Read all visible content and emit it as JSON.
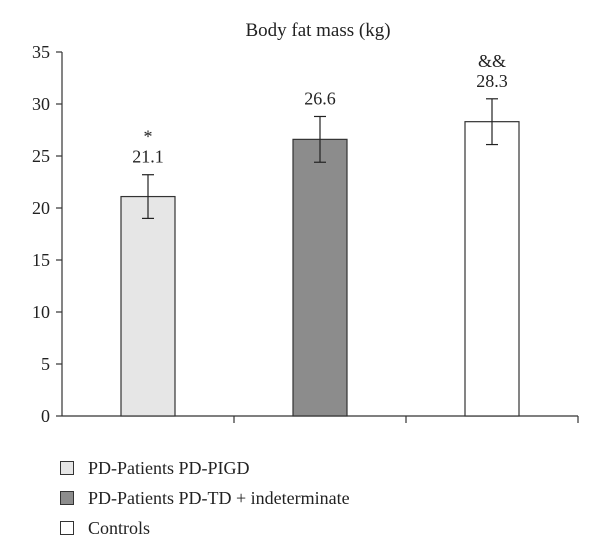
{
  "chart_data": {
    "type": "bar",
    "title": "Body fat mass (kg)",
    "xlabel": "",
    "ylabel": "",
    "ylim": [
      0,
      35
    ],
    "yticks": [
      0,
      5,
      10,
      15,
      20,
      25,
      30,
      35
    ],
    "grid": false,
    "legend_position": "bottom",
    "series": [
      {
        "name": "PD-Patients PD-PIGD",
        "value": 21.1,
        "error": 2.1,
        "label": "21.1",
        "annotation": "*",
        "color": "#e6e6e6"
      },
      {
        "name": "PD-Patients PD-TD + indeterminate",
        "value": 26.6,
        "error": 2.2,
        "label": "26.6",
        "annotation": "",
        "color": "#8c8c8c"
      },
      {
        "name": "Controls",
        "value": 28.3,
        "error": 2.2,
        "label": "28.3",
        "annotation": "&&",
        "color": "#ffffff"
      }
    ]
  }
}
